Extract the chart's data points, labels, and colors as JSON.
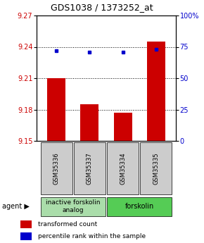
{
  "title": "GDS1038 / 1373252_at",
  "samples": [
    "GSM35336",
    "GSM35337",
    "GSM35334",
    "GSM35335"
  ],
  "red_values": [
    9.21,
    9.185,
    9.177,
    9.245
  ],
  "blue_values": [
    72,
    71,
    71,
    73
  ],
  "ylim_left": [
    9.15,
    9.27
  ],
  "ylim_right": [
    0,
    100
  ],
  "yticks_left": [
    9.15,
    9.18,
    9.21,
    9.24,
    9.27
  ],
  "yticks_right": [
    0,
    25,
    50,
    75,
    100
  ],
  "bar_color": "#cc0000",
  "dot_color": "#0000cc",
  "grid_ticks": [
    9.18,
    9.21,
    9.24
  ],
  "agent_groups": [
    {
      "label": "inactive forskolin\nanalog",
      "color": "#aaddaa"
    },
    {
      "label": "forskolin",
      "color": "#55cc55"
    }
  ],
  "legend_items": [
    {
      "color": "#cc0000",
      "label": "transformed count"
    },
    {
      "color": "#0000cc",
      "label": "percentile rank within the sample"
    }
  ],
  "bg_color_plot": "#ffffff",
  "bg_color_sample": "#cccccc",
  "title_fontsize": 9,
  "tick_fontsize": 7,
  "sample_fontsize": 6,
  "agent_fontsize": 6.5,
  "legend_fontsize": 6.5
}
